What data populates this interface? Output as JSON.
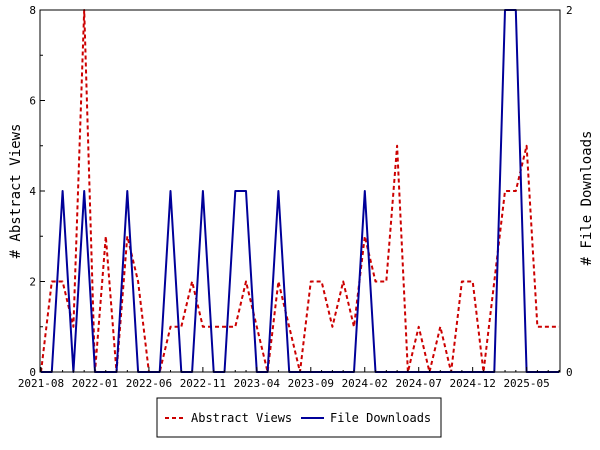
{
  "chart_data": {
    "type": "line",
    "x": [
      "2021-08",
      "2021-09",
      "2021-10",
      "2021-11",
      "2021-12",
      "2022-01",
      "2022-02",
      "2022-03",
      "2022-04",
      "2022-05",
      "2022-06",
      "2022-07",
      "2022-08",
      "2022-09",
      "2022-10",
      "2022-11",
      "2022-12",
      "2023-01",
      "2023-02",
      "2023-03",
      "2023-04",
      "2023-05",
      "2023-06",
      "2023-07",
      "2023-08",
      "2023-09",
      "2023-10",
      "2023-11",
      "2023-12",
      "2024-01",
      "2024-02",
      "2024-03",
      "2024-04",
      "2024-05",
      "2024-06",
      "2024-07",
      "2024-08",
      "2024-09",
      "2024-10",
      "2024-11",
      "2024-12",
      "2025-01",
      "2025-02",
      "2025-03",
      "2025-04",
      "2025-05",
      "2025-06",
      "2025-07",
      "2025-08"
    ],
    "x_tick_labels": [
      "2021-08",
      "2022-01",
      "2022-06",
      "2022-11",
      "2023-04",
      "2023-09",
      "2024-02",
      "2024-07",
      "2024-12",
      "2025-05"
    ],
    "series": [
      {
        "name": "Abstract Views",
        "axis": "left",
        "color": "#cc0000",
        "dash": "dashed",
        "values": [
          0,
          2,
          2,
          1,
          8,
          0,
          3,
          0,
          3,
          2,
          0,
          0,
          1,
          1,
          2,
          1,
          1,
          1,
          1,
          2,
          1,
          0,
          2,
          1,
          0,
          2,
          2,
          1,
          2,
          1,
          3,
          2,
          2,
          5,
          0,
          1,
          0,
          1,
          0,
          2,
          2,
          0,
          2,
          4,
          4,
          5,
          1,
          1,
          1
        ]
      },
      {
        "name": "File Downloads",
        "axis": "right",
        "color": "#000099",
        "dash": "solid",
        "values": [
          0,
          0,
          1,
          0,
          1,
          0,
          0,
          0,
          1,
          0,
          0,
          0,
          1,
          0,
          0,
          1,
          0,
          0,
          1,
          1,
          0,
          0,
          1,
          0,
          0,
          0,
          0,
          0,
          0,
          0,
          1,
          0,
          0,
          0,
          0,
          0,
          0,
          0,
          0,
          0,
          0,
          0,
          0,
          2,
          2,
          0,
          0,
          0,
          0
        ]
      }
    ],
    "ylabel": "# Abstract Views",
    "y2label": "# File Downloads",
    "ylim": [
      0,
      8
    ],
    "y2lim": [
      0,
      2
    ],
    "y_ticks": [
      "0",
      "2",
      "4",
      "6",
      "8"
    ],
    "y2_ticks": [
      "0",
      "2"
    ],
    "grid": false,
    "legend_position": "bottom-center",
    "legend": [
      "Abstract Views",
      "File Downloads"
    ]
  }
}
